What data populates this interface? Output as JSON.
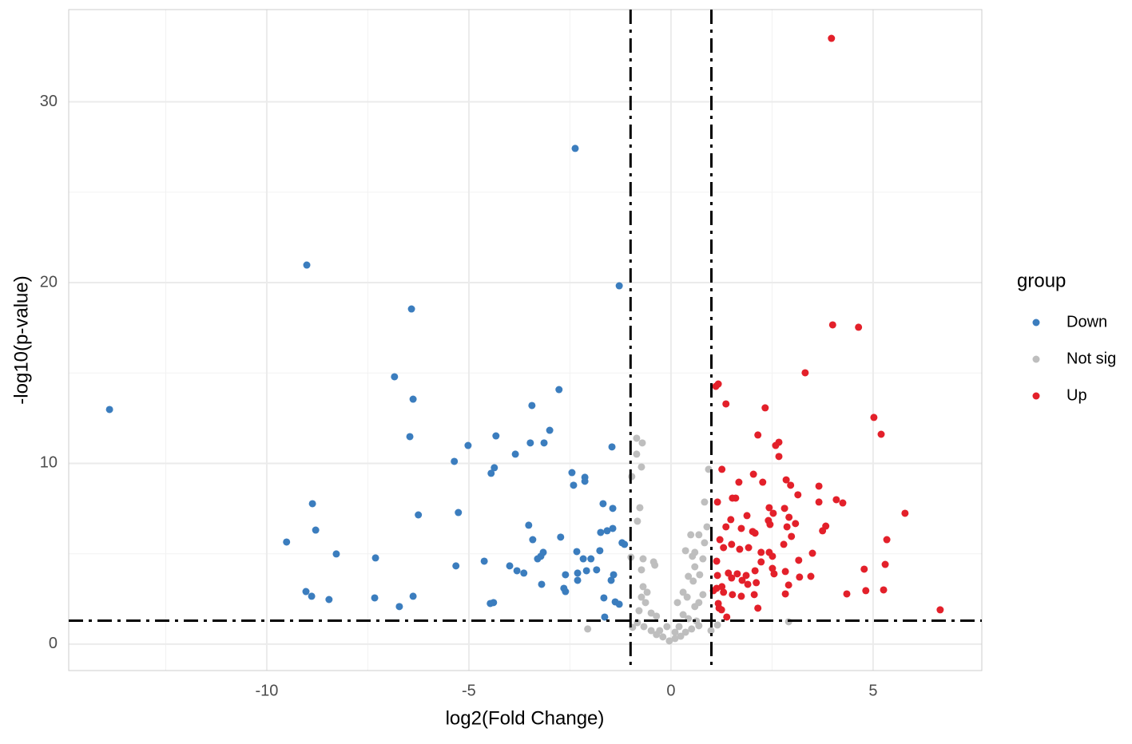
{
  "chart_data": {
    "type": "scatter",
    "x_label": "log2(Fold Change)",
    "y_label": "-log10(p-value)",
    "legend_title": "group",
    "legend_position": "right",
    "xlim": [
      -14.9,
      7.69
    ],
    "ylim": [
      -1.46,
      35.1
    ],
    "xticks": [
      -10,
      -5,
      0,
      5
    ],
    "yticks": [
      0,
      10,
      20,
      30
    ],
    "x_minor_grid": [
      -12.5,
      -7.5,
      -2.5,
      2.5
    ],
    "y_minor_grid": [
      5,
      15,
      25
    ],
    "grid": true,
    "vlines": [
      -1,
      1
    ],
    "hlines": [
      1.3
    ],
    "series": [
      {
        "name": "Down",
        "color": "#3B7DBE",
        "x": [
          -13.89,
          -9.01,
          -2.37,
          -1.28,
          -6.42,
          -6.84,
          -6.38,
          -6.46,
          -2.77,
          -3.44,
          -3.0,
          -3.48,
          -3.14,
          -4.33,
          -5.02,
          -5.36,
          -3.85,
          -4.37,
          -4.45,
          -2.45,
          -2.13,
          -2.41,
          -2.13,
          -1.46,
          -1.68,
          -1.44,
          -8.87,
          -8.79,
          -6.25,
          -5.26,
          -3.52,
          -1.44,
          -1.58,
          -1.74,
          -1.21,
          -1.15,
          -9.51,
          -8.28,
          -7.31,
          -3.42,
          -2.73,
          -3.16,
          -3.22,
          -3.3,
          -2.33,
          -1.76,
          -1.98,
          -2.17,
          -4.62,
          -5.32,
          -3.99,
          -3.81,
          -3.64,
          -2.61,
          -2.31,
          -2.09,
          -1.84,
          -1.42,
          -1.48,
          -2.31,
          -3.2,
          -2.65,
          -2.61,
          -9.03,
          -8.89,
          -8.46,
          -7.33,
          -6.38,
          -4.39,
          -4.47,
          -6.72,
          -1.66,
          -1.38,
          -1.28,
          -1.64
        ],
        "y": [
          12.98,
          20.97,
          27.42,
          19.82,
          18.54,
          14.79,
          13.55,
          11.48,
          14.08,
          13.2,
          11.83,
          11.13,
          11.13,
          11.52,
          10.99,
          10.11,
          10.51,
          9.76,
          9.45,
          9.49,
          9.23,
          8.79,
          9.01,
          10.91,
          7.77,
          7.51,
          7.77,
          6.31,
          7.15,
          7.28,
          6.58,
          6.4,
          6.27,
          6.18,
          5.61,
          5.52,
          5.65,
          4.99,
          4.77,
          5.78,
          5.92,
          5.08,
          4.86,
          4.72,
          5.12,
          5.17,
          4.72,
          4.72,
          4.59,
          4.33,
          4.33,
          4.06,
          3.93,
          3.84,
          3.93,
          4.06,
          4.11,
          3.84,
          3.53,
          3.53,
          3.31,
          3.09,
          2.91,
          2.91,
          2.65,
          2.47,
          2.56,
          2.65,
          2.3,
          2.25,
          2.08,
          2.56,
          2.34,
          2.21,
          1.5
        ]
      },
      {
        "name": "Not sig",
        "color": "#BEBEBE",
        "x": [
          -0.85,
          -0.71,
          -0.73,
          -0.85,
          -0.97,
          -0.77,
          -0.83,
          0.93,
          0.83,
          0.89,
          0.49,
          0.69,
          0.83,
          0.36,
          0.59,
          0.53,
          0.79,
          -0.99,
          -0.69,
          -0.43,
          -0.4,
          -0.73,
          0.59,
          0.71,
          0.43,
          0.55,
          -0.69,
          -0.59,
          -0.73,
          -0.63,
          0.3,
          0.4,
          0.16,
          0.79,
          0.69,
          0.59,
          -0.79,
          -0.49,
          -0.36,
          0.3,
          0.43,
          0.63,
          -0.83,
          -0.67,
          -0.49,
          -0.36,
          -0.2,
          -0.04,
          0.1,
          0.24,
          0.36,
          0.51,
          0.69,
          -0.28,
          0.1,
          -0.1,
          0.2,
          -2.06,
          -0.95,
          2.91,
          1.15,
          0.99
        ],
        "y": [
          11.39,
          11.13,
          9.8,
          10.51,
          9.27,
          7.55,
          6.8,
          9.67,
          7.86,
          6.49,
          6.05,
          6.05,
          5.61,
          5.17,
          5.08,
          4.86,
          4.72,
          4.81,
          4.72,
          4.55,
          4.37,
          4.11,
          4.28,
          3.84,
          3.75,
          3.49,
          3.18,
          2.87,
          2.6,
          2.3,
          2.87,
          2.6,
          2.3,
          2.74,
          2.3,
          2.08,
          1.85,
          1.72,
          1.55,
          1.63,
          1.41,
          1.28,
          1.19,
          0.97,
          0.75,
          0.53,
          0.4,
          0.18,
          0.31,
          0.44,
          0.66,
          0.84,
          1.02,
          0.75,
          0.66,
          0.97,
          0.97,
          0.84,
          0.93,
          1.24,
          1.06,
          0.75
        ]
      },
      {
        "name": "Up",
        "color": "#E3202A",
        "x": [
          3.97,
          4.0,
          4.64,
          3.32,
          5.02,
          5.2,
          5.79,
          5.34,
          5.3,
          4.78,
          5.26,
          4.82,
          4.35,
          6.66,
          1.17,
          1.11,
          1.36,
          2.33,
          2.15,
          2.67,
          2.59,
          2.67,
          1.26,
          2.04,
          1.68,
          2.85,
          2.96,
          2.27,
          3.66,
          1.6,
          1.52,
          3.14,
          4.09,
          4.25,
          3.66,
          1.15,
          2.43,
          2.81,
          2.53,
          1.48,
          1.88,
          2.41,
          2.92,
          2.45,
          3.08,
          2.87,
          1.36,
          1.74,
          2.08,
          2.02,
          3.83,
          3.75,
          2.98,
          1.21,
          2.79,
          1.5,
          1.92,
          1.3,
          1.7,
          2.23,
          2.43,
          2.51,
          3.5,
          3.16,
          2.23,
          1.13,
          2.08,
          2.51,
          2.55,
          2.83,
          1.42,
          1.64,
          3.46,
          3.18,
          1.86,
          1.5,
          1.76,
          2.11,
          1.9,
          2.91,
          1.26,
          1.13,
          1.05,
          1.3,
          1.52,
          2.06,
          1.74,
          2.83,
          1.17,
          1.19,
          1.25,
          2.15,
          1.38,
          1.15
        ],
        "y": [
          33.51,
          17.66,
          17.53,
          15.01,
          12.54,
          11.61,
          7.24,
          5.78,
          4.41,
          4.15,
          3.0,
          2.96,
          2.78,
          1.9,
          14.39,
          14.26,
          13.29,
          13.07,
          11.57,
          11.17,
          10.99,
          10.38,
          9.67,
          9.4,
          8.96,
          9.09,
          8.79,
          8.96,
          8.74,
          8.08,
          8.08,
          8.26,
          7.99,
          7.81,
          7.86,
          7.86,
          7.55,
          7.51,
          7.24,
          6.89,
          7.11,
          6.84,
          7.02,
          6.62,
          6.67,
          6.49,
          6.49,
          6.4,
          6.14,
          6.23,
          6.53,
          6.27,
          5.96,
          5.78,
          5.52,
          5.52,
          5.34,
          5.34,
          5.25,
          5.08,
          5.08,
          4.86,
          5.03,
          4.64,
          4.55,
          4.59,
          4.06,
          4.19,
          3.89,
          4.02,
          3.93,
          3.89,
          3.75,
          3.71,
          3.8,
          3.66,
          3.53,
          3.4,
          3.31,
          3.27,
          3.18,
          3.09,
          2.96,
          2.87,
          2.74,
          2.74,
          2.65,
          2.78,
          2.25,
          1.99,
          1.9,
          1.99,
          1.5,
          3.8
        ]
      }
    ]
  }
}
